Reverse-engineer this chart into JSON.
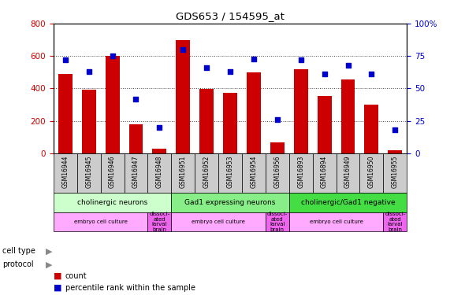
{
  "title": "GDS653 / 154595_at",
  "samples": [
    "GSM16944",
    "GSM16945",
    "GSM16946",
    "GSM16947",
    "GSM16948",
    "GSM16951",
    "GSM16952",
    "GSM16953",
    "GSM16954",
    "GSM16956",
    "GSM16893",
    "GSM16894",
    "GSM16949",
    "GSM16950",
    "GSM16955"
  ],
  "counts": [
    490,
    390,
    600,
    180,
    30,
    700,
    395,
    375,
    500,
    65,
    520,
    355,
    455,
    300,
    20
  ],
  "percentiles": [
    72,
    63,
    75,
    42,
    20,
    80,
    66,
    63,
    73,
    26,
    72,
    61,
    68,
    61,
    18
  ],
  "ylim_left": [
    0,
    800
  ],
  "ylim_right": [
    0,
    100
  ],
  "yticks_left": [
    0,
    200,
    400,
    600,
    800
  ],
  "yticks_right": [
    0,
    25,
    50,
    75,
    100
  ],
  "bar_color": "#cc0000",
  "dot_color": "#0000cc",
  "cell_type_groups": [
    {
      "label": "cholinergic neurons",
      "start": 0,
      "end": 5,
      "color": "#ccffcc"
    },
    {
      "label": "Gad1 expressing neurons",
      "start": 5,
      "end": 10,
      "color": "#88ee88"
    },
    {
      "label": "cholinergic/Gad1 negative",
      "start": 10,
      "end": 15,
      "color": "#44dd44"
    }
  ],
  "protocol_groups": [
    {
      "label": "embryo cell culture",
      "start": 0,
      "end": 4,
      "color": "#ffaaff"
    },
    {
      "label": "dissoci-\nated\nlarval\nbrain",
      "start": 4,
      "end": 5,
      "color": "#ee66ee"
    },
    {
      "label": "embryo cell culture",
      "start": 5,
      "end": 9,
      "color": "#ffaaff"
    },
    {
      "label": "dissoci-\nated\nlarval\nbrain",
      "start": 9,
      "end": 10,
      "color": "#ee66ee"
    },
    {
      "label": "embryo cell culture",
      "start": 10,
      "end": 14,
      "color": "#ffaaff"
    },
    {
      "label": "dissoci-\nated\nlarval\nbrain",
      "start": 14,
      "end": 15,
      "color": "#ee66ee"
    }
  ],
  "cell_type_label": "cell type",
  "protocol_label": "protocol",
  "legend_count_label": "count",
  "legend_pct_label": "percentile rank within the sample",
  "bg_color": "#ffffff",
  "tick_color_left": "#cc0000",
  "tick_color_right": "#0000cc",
  "grid_color": "#000000",
  "xtick_bg": "#cccccc"
}
